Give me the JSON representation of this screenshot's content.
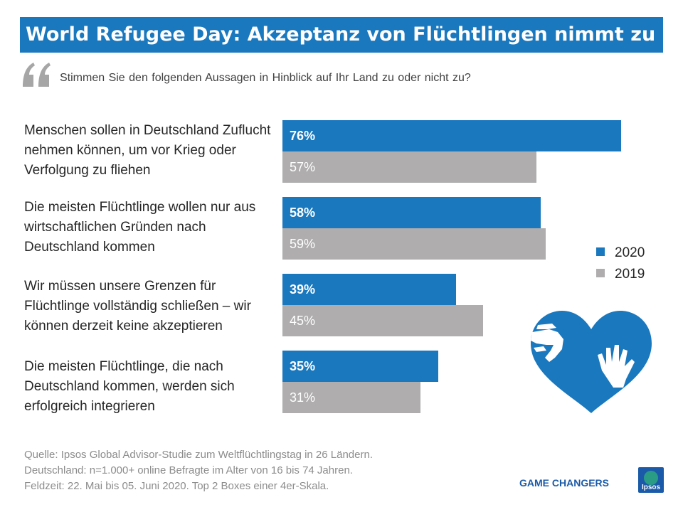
{
  "title": "World Refugee Day: Akzeptanz von Flüchtlingen nimmt zu",
  "question": "Stimmen Sie den folgenden Aussagen in Hinblick auf Ihr Land zu oder nicht zu?",
  "icons": {
    "quote": "quote-icon",
    "heart": "heart-hands-icon",
    "logo": "ipsos-logo-icon"
  },
  "colors": {
    "title_bg": "#1a78be",
    "series_2020": "#1a78be",
    "series_2019": "#afadad"
  },
  "chart_data": {
    "type": "bar",
    "orientation": "horizontal",
    "categories": [
      "Menschen sollen in Deutschland Zuflucht nehmen können, um vor Krieg oder Verfolgung zu fliehen",
      "Die meisten Flüchtlinge wollen nur aus wirtschaftlichen Gründen nach Deutschland kommen",
      "Wir müssen unsere Grenzen für Flüchtlinge vollständig schließen – wir können derzeit keine akzeptieren",
      "Die meisten Flüchtlinge, die nach Deutschland kommen, werden sich erfolgreich integrieren"
    ],
    "series": [
      {
        "name": "2020",
        "values": [
          76,
          58,
          39,
          35
        ],
        "labels": [
          "76%",
          "58%",
          "39%",
          "35%"
        ],
        "color": "#1a78be"
      },
      {
        "name": "2019",
        "values": [
          57,
          59,
          45,
          31
        ],
        "labels": [
          "57%",
          "59%",
          "45%",
          "31%"
        ],
        "color": "#afadad"
      }
    ],
    "legend": [
      "2020",
      "2019"
    ],
    "legend_position": "right",
    "grid": false
  },
  "source": {
    "line1": "Quelle: Ipsos Global Advisor-Studie zum Weltflüchtlingstag in 26 Ländern.",
    "line2": "Deutschland: n=1.000+ online Befragte im Alter von 16 bis 74 Jahren.",
    "line3": "Feldzeit: 22. Mai bis 05. Juni 2020. Top 2 Boxes einer 4er-Skala."
  },
  "branding": {
    "tagline": "GAME CHANGERS",
    "logo_text": "Ipsos"
  }
}
